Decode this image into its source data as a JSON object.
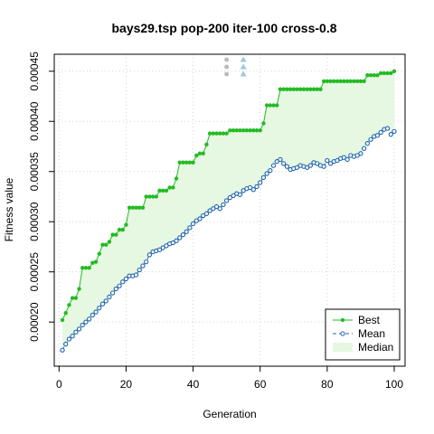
{
  "chart_data": {
    "type": "line",
    "title": "bays29.tsp pop-200 iter-100 cross-0.8",
    "xlabel": "Generation",
    "ylabel": "Fitness value",
    "xlim": [
      1,
      100
    ],
    "ylim": [
      0.000165,
      0.000457
    ],
    "x_ticks": [
      0,
      20,
      40,
      60,
      80,
      100
    ],
    "x_tick_labels": [
      "0",
      "20",
      "40",
      "60",
      "80",
      "100"
    ],
    "y_ticks": [
      0.0002,
      0.00025,
      0.0003,
      0.00035,
      0.0004,
      0.00045
    ],
    "y_tick_labels": [
      "0.00020",
      "0.00025",
      "0.00030",
      "0.00035",
      "0.00040",
      "0.00045"
    ],
    "grid": true,
    "legend": {
      "position": "bottom-right",
      "entries": [
        {
          "label": "Best",
          "color": "#22bb22",
          "style": "line-points"
        },
        {
          "label": "Mean",
          "color": "#2166ac",
          "style": "dashed-circles"
        },
        {
          "label": "Median",
          "color": "#e6f7e2",
          "style": "fill"
        }
      ]
    },
    "series": [
      {
        "name": "Best",
        "color": "#22bb22",
        "x": [
          1,
          2,
          3,
          4,
          5,
          6,
          7,
          8,
          9,
          10,
          11,
          12,
          13,
          14,
          15,
          16,
          17,
          18,
          19,
          20,
          21,
          22,
          23,
          24,
          25,
          26,
          27,
          28,
          29,
          30,
          31,
          32,
          33,
          34,
          35,
          36,
          37,
          38,
          39,
          40,
          41,
          42,
          43,
          44,
          45,
          46,
          47,
          48,
          49,
          50,
          51,
          52,
          53,
          54,
          55,
          56,
          57,
          58,
          59,
          60,
          61,
          62,
          63,
          64,
          65,
          66,
          67,
          68,
          69,
          70,
          71,
          72,
          73,
          74,
          75,
          76,
          77,
          78,
          79,
          80,
          81,
          82,
          83,
          84,
          85,
          86,
          87,
          88,
          89,
          90,
          91,
          92,
          93,
          94,
          95,
          96,
          97,
          98,
          99,
          100
        ],
        "values": [
          0.000202,
          0.000209,
          0.000217,
          0.000224,
          0.000224,
          0.000233,
          0.000254,
          0.000254,
          0.000254,
          0.000259,
          0.00026,
          0.000268,
          0.000277,
          0.000277,
          0.00028,
          0.000287,
          0.000287,
          0.000292,
          0.000292,
          0.000297,
          0.000314,
          0.000314,
          0.000314,
          0.000314,
          0.000314,
          0.000325,
          0.000325,
          0.000325,
          0.000325,
          0.000331,
          0.000331,
          0.000331,
          0.000334,
          0.000334,
          0.000343,
          0.000359,
          0.000359,
          0.000359,
          0.000359,
          0.000359,
          0.000366,
          0.000368,
          0.000368,
          0.000377,
          0.000388,
          0.000388,
          0.000388,
          0.000388,
          0.000388,
          0.000388,
          0.000391,
          0.000391,
          0.000391,
          0.000391,
          0.000391,
          0.000391,
          0.000391,
          0.000391,
          0.000391,
          0.000391,
          0.000398,
          0.000416,
          0.000416,
          0.000416,
          0.000416,
          0.000432,
          0.000432,
          0.000432,
          0.000432,
          0.000432,
          0.000432,
          0.000432,
          0.000432,
          0.000432,
          0.000432,
          0.000432,
          0.000432,
          0.000432,
          0.00044,
          0.00044,
          0.00044,
          0.00044,
          0.00044,
          0.00044,
          0.00044,
          0.00044,
          0.00044,
          0.00044,
          0.00044,
          0.00044,
          0.00044,
          0.000446,
          0.000446,
          0.000446,
          0.000446,
          0.000448,
          0.000448,
          0.000448,
          0.000448,
          0.00045
        ]
      },
      {
        "name": "Mean",
        "color": "#2166ac",
        "x": [
          1,
          2,
          3,
          4,
          5,
          6,
          7,
          8,
          9,
          10,
          11,
          12,
          13,
          14,
          15,
          16,
          17,
          18,
          19,
          20,
          21,
          22,
          23,
          24,
          25,
          26,
          27,
          28,
          29,
          30,
          31,
          32,
          33,
          34,
          35,
          36,
          37,
          38,
          39,
          40,
          41,
          42,
          43,
          44,
          45,
          46,
          47,
          48,
          49,
          50,
          51,
          52,
          53,
          54,
          55,
          56,
          57,
          58,
          59,
          60,
          61,
          62,
          63,
          64,
          65,
          66,
          67,
          68,
          69,
          70,
          71,
          72,
          73,
          74,
          75,
          76,
          77,
          78,
          79,
          80,
          81,
          82,
          83,
          84,
          85,
          86,
          87,
          88,
          89,
          90,
          91,
          92,
          93,
          94,
          95,
          96,
          97,
          98,
          99,
          100
        ],
        "values": [
          0.000172,
          0.000178,
          0.000183,
          0.000186,
          0.00019,
          0.000193,
          0.000197,
          0.0002,
          0.000203,
          0.000207,
          0.00021,
          0.000214,
          0.000218,
          0.000221,
          0.000225,
          0.000229,
          0.000233,
          0.000236,
          0.00024,
          0.000243,
          0.000246,
          0.000246,
          0.000247,
          0.000252,
          0.000256,
          0.00026,
          0.000267,
          0.00027,
          0.000271,
          0.000272,
          0.000274,
          0.000276,
          0.000278,
          0.000279,
          0.000281,
          0.000284,
          0.000287,
          0.00029,
          0.000294,
          0.000298,
          0.000301,
          0.000303,
          0.000306,
          0.000308,
          0.000311,
          0.000313,
          0.000315,
          0.000313,
          0.000317,
          0.000321,
          0.000324,
          0.000326,
          0.000328,
          0.000327,
          0.000331,
          0.000333,
          0.000334,
          0.000332,
          0.000335,
          0.000339,
          0.000344,
          0.000348,
          0.000351,
          0.000356,
          0.00036,
          0.000362,
          0.000358,
          0.000355,
          0.000352,
          0.000353,
          0.000354,
          0.000356,
          0.000355,
          0.000354,
          0.000356,
          0.000359,
          0.000358,
          0.000356,
          0.000355,
          0.000361,
          0.000358,
          0.00036,
          0.000361,
          0.000363,
          0.000364,
          0.000362,
          0.000366,
          0.000365,
          0.000366,
          0.000368,
          0.000373,
          0.000378,
          0.000382,
          0.000385,
          0.000386,
          0.000389,
          0.000392,
          0.000393,
          0.000387,
          0.00039
        ]
      }
    ],
    "overflow_markers": [
      {
        "x": 50,
        "symbol": "circle",
        "color": "#bbbbbb",
        "count": 3
      },
      {
        "x": 55,
        "symbol": "triangle",
        "color": "#9ac9de",
        "count": 3
      }
    ]
  }
}
